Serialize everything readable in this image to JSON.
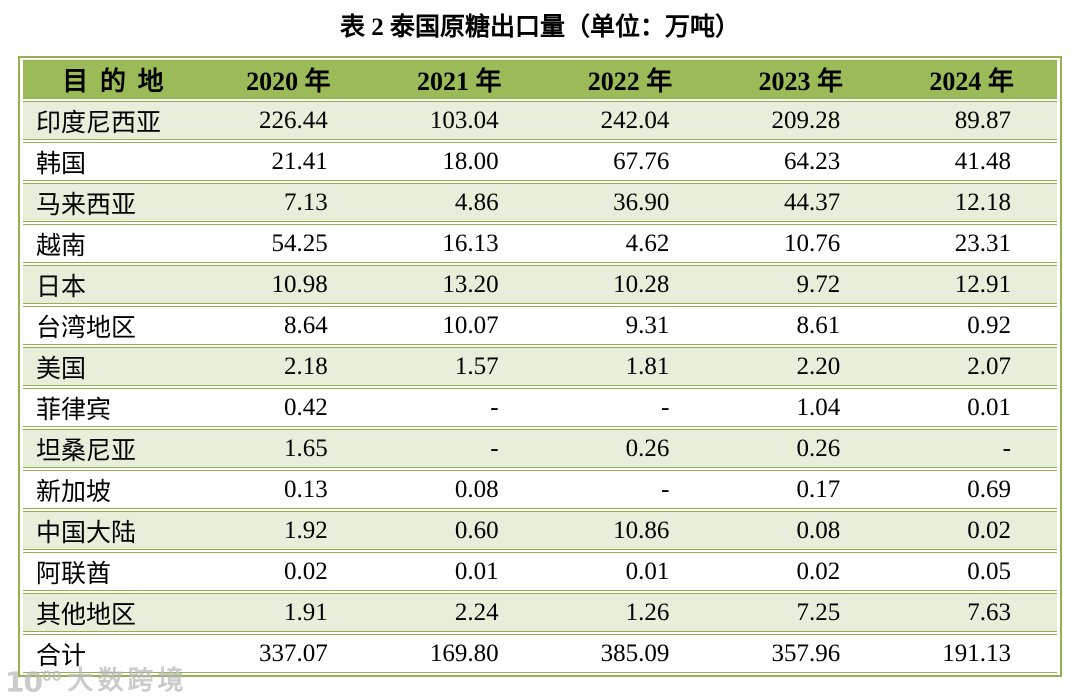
{
  "title": "表 2  泰国原糖出口量（单位：万吨）",
  "watermark": {
    "logo_number": "10",
    "logo_superscript": "00",
    "text": "大数跨境"
  },
  "colors": {
    "header_bg": "#9bbb59",
    "banded_row_bg": "#e7eeda",
    "border": "#94b152",
    "text": "#000000",
    "watermark": "#b9b9b9"
  },
  "chart_data": {
    "type": "table",
    "title": "表 2 泰国原糖出口量",
    "unit": "万吨",
    "columns": [
      "目的地",
      "2020 年",
      "2021 年",
      "2022 年",
      "2023 年",
      "2024 年"
    ],
    "rows": [
      {
        "destination": "印度尼西亚",
        "values": [
          "226.44",
          "103.04",
          "242.04",
          "209.28",
          "89.87"
        ]
      },
      {
        "destination": "韩国",
        "values": [
          "21.41",
          "18.00",
          "67.76",
          "64.23",
          "41.48"
        ]
      },
      {
        "destination": "马来西亚",
        "values": [
          "7.13",
          "4.86",
          "36.90",
          "44.37",
          "12.18"
        ]
      },
      {
        "destination": "越南",
        "values": [
          "54.25",
          "16.13",
          "4.62",
          "10.76",
          "23.31"
        ]
      },
      {
        "destination": "日本",
        "values": [
          "10.98",
          "13.20",
          "10.28",
          "9.72",
          "12.91"
        ]
      },
      {
        "destination": "台湾地区",
        "values": [
          "8.64",
          "10.07",
          "9.31",
          "8.61",
          "0.92"
        ]
      },
      {
        "destination": "美国",
        "values": [
          "2.18",
          "1.57",
          "1.81",
          "2.20",
          "2.07"
        ]
      },
      {
        "destination": "菲律宾",
        "values": [
          "0.42",
          "-",
          "-",
          "1.04",
          "0.01"
        ]
      },
      {
        "destination": "坦桑尼亚",
        "values": [
          "1.65",
          "-",
          "0.26",
          "0.26",
          "-"
        ]
      },
      {
        "destination": "新加坡",
        "values": [
          "0.13",
          "0.08",
          "-",
          "0.17",
          "0.69"
        ]
      },
      {
        "destination": "中国大陆",
        "values": [
          "1.92",
          "0.60",
          "10.86",
          "0.08",
          "0.02"
        ]
      },
      {
        "destination": "阿联酋",
        "values": [
          "0.02",
          "0.01",
          "0.01",
          "0.02",
          "0.05"
        ]
      },
      {
        "destination": "其他地区",
        "values": [
          "1.91",
          "2.24",
          "1.26",
          "7.25",
          "7.63"
        ]
      },
      {
        "destination": "合计",
        "values": [
          "337.07",
          "169.80",
          "385.09",
          "357.96",
          "191.13"
        ]
      }
    ]
  }
}
